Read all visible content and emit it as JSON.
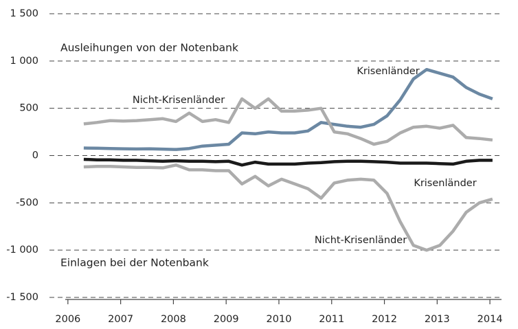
{
  "chart_data": {
    "type": "line",
    "annotations": [
      "Ausleihungen von der Notenbank",
      "Einlagen bei der Notenbank"
    ],
    "x": [
      2006.3,
      2006.55,
      2006.8,
      2007.05,
      2007.3,
      2007.55,
      2007.8,
      2008.05,
      2008.3,
      2008.55,
      2008.8,
      2009.05,
      2009.3,
      2009.55,
      2009.8,
      2010.05,
      2010.3,
      2010.55,
      2010.8,
      2011.05,
      2011.3,
      2011.55,
      2011.8,
      2012.05,
      2012.3,
      2012.55,
      2012.8,
      2013.05,
      2013.3,
      2013.55,
      2013.8,
      2014.05
    ],
    "series": [
      {
        "name": "Krisenländer",
        "color": "#6b88a3",
        "values": [
          80,
          78,
          75,
          72,
          70,
          72,
          68,
          65,
          75,
          100,
          110,
          120,
          240,
          230,
          250,
          240,
          240,
          260,
          350,
          330,
          310,
          300,
          330,
          420,
          590,
          810,
          910,
          870,
          830,
          720,
          650,
          600
        ]
      },
      {
        "name": "Nicht-Krisenländer",
        "color": "#acacac",
        "values": [
          335,
          350,
          370,
          365,
          370,
          380,
          390,
          360,
          450,
          360,
          380,
          350,
          600,
          500,
          600,
          470,
          470,
          480,
          500,
          250,
          230,
          180,
          120,
          150,
          240,
          300,
          310,
          290,
          320,
          190,
          180,
          165
        ]
      },
      {
        "name": "Krisenländer",
        "color": "#1a1a1a",
        "values": [
          -40,
          -45,
          -45,
          -50,
          -50,
          -55,
          -60,
          -55,
          -60,
          -60,
          -65,
          -60,
          -100,
          -70,
          -90,
          -90,
          -90,
          -80,
          -75,
          -65,
          -60,
          -60,
          -65,
          -70,
          -80,
          -80,
          -80,
          -85,
          -90,
          -60,
          -50,
          -50
        ]
      },
      {
        "name": "Nicht-Krisenländer",
        "color": "#acacac",
        "values": [
          -120,
          -115,
          -115,
          -120,
          -125,
          -125,
          -130,
          -100,
          -150,
          -150,
          -160,
          -160,
          -300,
          -220,
          -320,
          -250,
          -300,
          -350,
          -450,
          -290,
          -260,
          -250,
          -260,
          -400,
          -700,
          -950,
          -1000,
          -950,
          -800,
          -600,
          -500,
          -460
        ]
      }
    ],
    "xlim": [
      2005.95,
      2014.22
    ],
    "xticks": [
      2006,
      2007,
      2008,
      2009,
      2010,
      2011,
      2012,
      2013,
      2014
    ],
    "ylim": [
      -1500,
      1500
    ],
    "yticks": [
      {
        "value": 1500,
        "label": "1 500"
      },
      {
        "value": 1000,
        "label": "1 000"
      },
      500,
      0,
      -500,
      {
        "value": -1000,
        "label": "-1 000"
      },
      {
        "value": -1500,
        "label": "-1 500"
      }
    ],
    "grid": true
  }
}
